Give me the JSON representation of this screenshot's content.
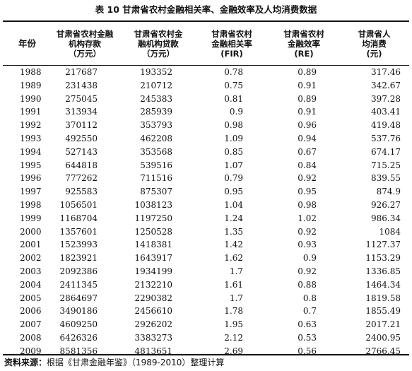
{
  "title": "表 10 甘肃省农村金融相关率、金融效率及人均消费数据",
  "columns": [
    {
      "label": "年份"
    },
    {
      "label": "甘肃省农村金融机构存款（万元）"
    },
    {
      "label": "甘肃省农村金融机构贷款（万元）"
    },
    {
      "label": "甘肃省农村金融相关率（FIR）"
    },
    {
      "label": "甘肃省农村金融效率（RE）"
    },
    {
      "label": "甘肃省人均消费（元）"
    }
  ],
  "header_lines": [
    [
      "年份"
    ],
    [
      "甘肃省农村金融",
      "机构存款",
      "（万元）"
    ],
    [
      "甘肃省农村金",
      "融机构贷款",
      "（万元）"
    ],
    [
      "甘肃省农村",
      "金融相关率",
      "(FIR)"
    ],
    [
      "甘肃省农村",
      "金融效率",
      "(RE)"
    ],
    [
      "甘肃省人",
      "均消费",
      "(元)"
    ]
  ],
  "rows": [
    [
      "1988",
      "217687",
      "193352",
      "0.78",
      "0.89",
      "317.46"
    ],
    [
      "1989",
      "231438",
      "210712",
      "0.75",
      "0.91",
      "342.67"
    ],
    [
      "1990",
      "275045",
      "245383",
      "0.81",
      "0.89",
      "397.28"
    ],
    [
      "1991",
      "313934",
      "285939",
      "0.9",
      "0.91",
      "403.41"
    ],
    [
      "1992",
      "370112",
      "353793",
      "0.98",
      "0.96",
      "419.48"
    ],
    [
      "1993",
      "492550",
      "462208",
      "1.09",
      "0.94",
      "537.76"
    ],
    [
      "1994",
      "527143",
      "353568",
      "0.85",
      "0.67",
      "674.17"
    ],
    [
      "1995",
      "644818",
      "539516",
      "1.07",
      "0.84",
      "715.25"
    ],
    [
      "1996",
      "777262",
      "711516",
      "0.79",
      "0.92",
      "839.55"
    ],
    [
      "1997",
      "925583",
      "875307",
      "0.95",
      "0.95",
      "874.9"
    ],
    [
      "1998",
      "1056501",
      "1038123",
      "1.04",
      "0.98",
      "926.27"
    ],
    [
      "1999",
      "1168704",
      "1197250",
      "1.24",
      "1.02",
      "986.34"
    ],
    [
      "2000",
      "1357601",
      "1250528",
      "1.35",
      "0.92",
      "1084"
    ],
    [
      "2001",
      "1523993",
      "1418381",
      "1.42",
      "0.93",
      "1127.37"
    ],
    [
      "2002",
      "1823921",
      "1643917",
      "1.62",
      "0.9",
      "1153.29"
    ],
    [
      "2003",
      "2092386",
      "1934199",
      "1.7",
      "0.92",
      "1336.85"
    ],
    [
      "2004",
      "2411345",
      "2132210",
      "1.61",
      "0.88",
      "1464.34"
    ],
    [
      "2005",
      "2864697",
      "2290382",
      "1.7",
      "0.8",
      "1819.58"
    ],
    [
      "2006",
      "3490186",
      "2456610",
      "1.78",
      "0.7",
      "1855.49"
    ],
    [
      "2007",
      "4609250",
      "2926202",
      "1.95",
      "0.63",
      "2017.21"
    ],
    [
      "2008",
      "6426326",
      "3383273",
      "2.12",
      "0.53",
      "2400.95"
    ],
    [
      "2009",
      "8581356",
      "4813651",
      "2.69",
      "0.56",
      "2766.45"
    ]
  ],
  "source": {
    "label": "资料来源：",
    "text": "根据《甘肃金融年鉴》（1989-2010）整理计算"
  }
}
